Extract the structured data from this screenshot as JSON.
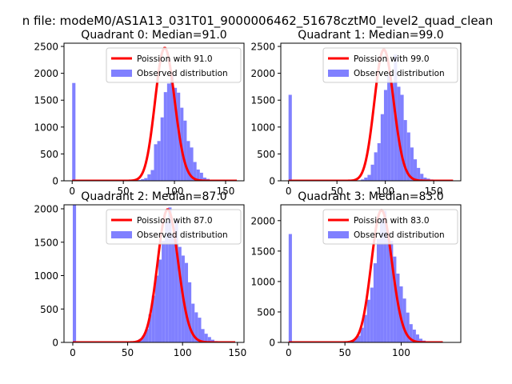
{
  "suptitle": "n file: modeM0/AS1A13_031T01_9000006462_51678cztM0_level2_quad_clean",
  "colors": {
    "poisson": "#ff0000",
    "observed": "#8080ff",
    "axis": "#000000",
    "background": "#ffffff"
  },
  "chart_data": [
    {
      "type": "bar",
      "title": "Quadrant 0: Median=91.0",
      "xlim": [
        -8,
        168
      ],
      "ylim": [
        0,
        2560
      ],
      "xticks": [
        0,
        50,
        100,
        150
      ],
      "yticks": [
        0,
        500,
        1000,
        1500,
        2000,
        2500
      ],
      "legend": {
        "position": "top-right",
        "entries": [
          "Poission with 91.0",
          "Observed distribution"
        ]
      },
      "histogram": {
        "name": "Observed distribution",
        "bin_width": 3.2,
        "bin_start": 0,
        "counts": [
          1820,
          0,
          0,
          0,
          0,
          0,
          0,
          0,
          0,
          0,
          0,
          0,
          0,
          0,
          0,
          0,
          0,
          0,
          3,
          5,
          15,
          30,
          50,
          120,
          200,
          680,
          740,
          1180,
          1650,
          1810,
          2000,
          1730,
          1640,
          1360,
          1120,
          740,
          620,
          350,
          210,
          150,
          60,
          35,
          20,
          10,
          5,
          3,
          0,
          0,
          0,
          0
        ]
      },
      "poisson": {
        "name": "Poission with 91.0",
        "mean": 91.0,
        "x_range": [
          0,
          161
        ],
        "peak": 2470
      }
    },
    {
      "type": "bar",
      "title": "Quadrant 1: Median=99.0",
      "xlim": [
        -8,
        178
      ],
      "ylim": [
        0,
        2560
      ],
      "xticks": [
        0,
        50,
        100,
        150
      ],
      "yticks": [
        0,
        500,
        1000,
        1500,
        2000,
        2500
      ],
      "legend": {
        "position": "top-right",
        "entries": [
          "Poission with 99.0",
          "Observed distribution"
        ]
      },
      "histogram": {
        "name": "Observed distribution",
        "bin_width": 3.4,
        "bin_start": 0,
        "counts": [
          1600,
          0,
          0,
          0,
          0,
          0,
          0,
          0,
          0,
          0,
          0,
          0,
          0,
          0,
          0,
          0,
          0,
          0,
          0,
          0,
          3,
          10,
          25,
          60,
          110,
          300,
          530,
          700,
          1240,
          1690,
          1970,
          1820,
          2350,
          1750,
          1600,
          1130,
          900,
          620,
          400,
          240,
          130,
          60,
          40,
          25,
          10,
          5,
          0,
          0,
          0,
          0
        ]
      },
      "poisson": {
        "name": "Poission with 99.0",
        "mean": 99.0,
        "x_range": [
          0,
          170
        ],
        "peak": 2440
      }
    },
    {
      "type": "bar",
      "title": "Quadrant 2: Median=87.0",
      "xlim": [
        -8,
        156
      ],
      "ylim": [
        0,
        2060
      ],
      "xticks": [
        0,
        50,
        100,
        150
      ],
      "yticks": [
        0,
        500,
        1000,
        1500,
        2000
      ],
      "legend": {
        "position": "top-right",
        "entries": [
          "Poission with 87.0",
          "Observed distribution"
        ]
      },
      "histogram": {
        "name": "Observed distribution",
        "bin_width": 3.0,
        "bin_start": 0,
        "counts": [
          2060,
          0,
          0,
          0,
          0,
          0,
          0,
          0,
          0,
          0,
          0,
          0,
          0,
          0,
          0,
          0,
          3,
          8,
          15,
          25,
          50,
          100,
          200,
          420,
          700,
          1000,
          1240,
          1520,
          1800,
          2020,
          1610,
          1830,
          1430,
          1300,
          1190,
          900,
          580,
          450,
          370,
          200,
          130,
          80,
          40,
          20,
          10,
          5,
          3,
          0,
          0,
          0
        ]
      },
      "poisson": {
        "name": "Poission with 87.0",
        "mean": 87.0,
        "x_range": [
          0,
          148
        ],
        "peak": 1990
      }
    },
    {
      "type": "bar",
      "title": "Quadrant 3: Median=83.0",
      "xlim": [
        -7,
        153
      ],
      "ylim": [
        0,
        2260
      ],
      "xticks": [
        0,
        50,
        100
      ],
      "yticks": [
        0,
        500,
        1000,
        1500,
        2000
      ],
      "legend": {
        "position": "top-right",
        "entries": [
          "Poission with 83.0",
          "Observed distribution"
        ]
      },
      "histogram": {
        "name": "Observed distribution",
        "bin_width": 2.9,
        "bin_start": 0,
        "counts": [
          1780,
          0,
          0,
          0,
          0,
          0,
          0,
          0,
          0,
          0,
          0,
          0,
          0,
          0,
          0,
          0,
          3,
          8,
          15,
          30,
          60,
          110,
          240,
          450,
          700,
          900,
          1300,
          1700,
          2040,
          2160,
          1810,
          1670,
          1410,
          1130,
          920,
          720,
          490,
          300,
          210,
          130,
          60,
          30,
          15,
          8,
          3,
          0,
          0,
          0,
          0,
          0
        ]
      },
      "poisson": {
        "name": "Poission with 83.0",
        "mean": 83.0,
        "x_range": [
          0,
          137
        ],
        "peak": 2170
      }
    }
  ]
}
